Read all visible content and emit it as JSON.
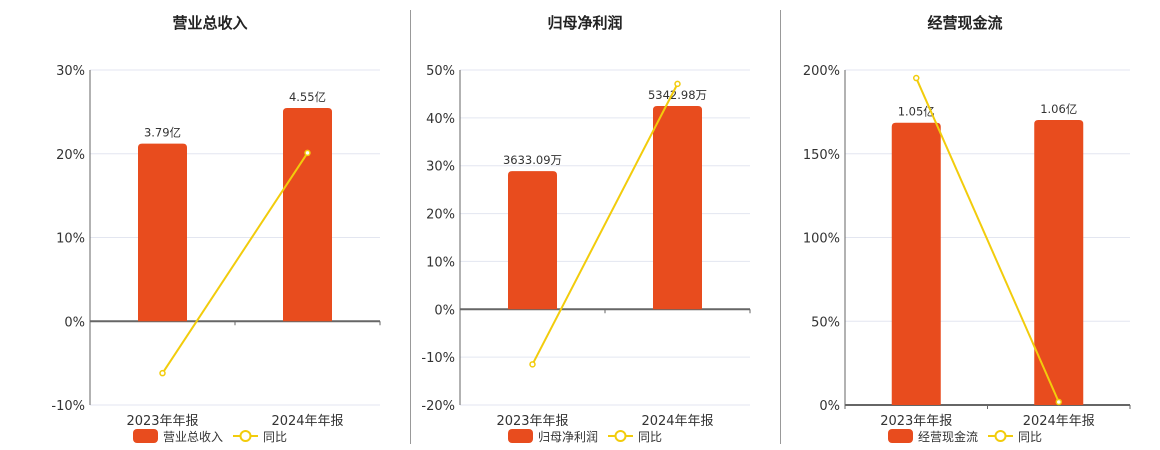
{
  "colors": {
    "bar": "#e84c1e",
    "line": "#f2cc0c",
    "axis": "#666666",
    "grid": "#e3e6f0",
    "text": "#333333"
  },
  "chart_data": [
    {
      "type": "bar+line",
      "title": "营业总收入",
      "categories": [
        "2023年年报",
        "2024年年报"
      ],
      "bar_series": {
        "name": "营业总收入",
        "values": [
          3.79,
          4.55
        ],
        "labels": [
          "3.79亿",
          "4.55亿"
        ],
        "unit": "亿",
        "scale_max": 5.36
      },
      "line_series": {
        "name": "同比",
        "values": [
          -6.2,
          20.1
        ]
      },
      "yticks": [
        "30%",
        "20%",
        "10%",
        "0%",
        "-10%"
      ],
      "ylim": [
        -10,
        30
      ],
      "ytick_values": [
        30,
        20,
        10,
        0,
        -10
      ]
    },
    {
      "type": "bar+line",
      "title": "归母净利润",
      "categories": [
        "2023年年报",
        "2024年年报"
      ],
      "bar_series": {
        "name": "归母净利润",
        "values": [
          3633.09,
          5342.98
        ],
        "labels": [
          "3633.09万",
          "5342.98万"
        ],
        "unit": "万",
        "scale_max": 6290
      },
      "line_series": {
        "name": "同比",
        "values": [
          -11.5,
          47.1
        ]
      },
      "yticks": [
        "50%",
        "40%",
        "30%",
        "20%",
        "10%",
        "0%",
        "-10%",
        "-20%"
      ],
      "ylim": [
        -20,
        50
      ],
      "ytick_values": [
        50,
        40,
        30,
        20,
        10,
        0,
        -10,
        -20
      ]
    },
    {
      "type": "bar+line",
      "title": "经营现金流",
      "categories": [
        "2023年年报",
        "2024年年报"
      ],
      "bar_series": {
        "name": "经营现金流",
        "values": [
          1.05,
          1.06
        ],
        "labels": [
          "1.05亿",
          "1.06亿"
        ],
        "unit": "亿",
        "scale_max": 1.246
      },
      "line_series": {
        "name": "同比",
        "values": [
          195.2,
          1.8
        ]
      },
      "yticks": [
        "200%",
        "150%",
        "100%",
        "50%",
        "0%"
      ],
      "ylim": [
        0,
        200
      ],
      "ytick_values": [
        200,
        150,
        100,
        50,
        0
      ]
    }
  ]
}
